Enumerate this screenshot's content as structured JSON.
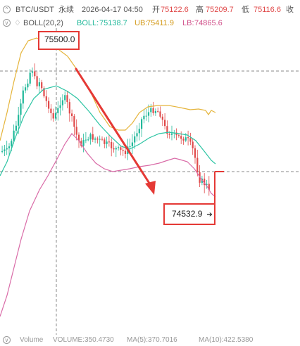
{
  "header": {
    "symbol": "BTC/USDT",
    "contract": "永续",
    "datetime": "2026-04-17 04:50",
    "open_label": "开",
    "open_value": "75122.6",
    "high_label": "高",
    "high_value": "75209.7",
    "low_label": "低",
    "low_value": "75116.6",
    "close_label": "收"
  },
  "indicator": {
    "name": "BOLL(20,2)",
    "boll_label": "BOLL:",
    "boll_value": "75138.7",
    "ub_label": "UB:",
    "ub_value": "75411.9",
    "lb_label": "LB:",
    "lb_value": "74865.6"
  },
  "annotations": {
    "high_price": "75500.0",
    "last_price": "74532.9"
  },
  "volume": {
    "label": "Volume",
    "volume_text": "VOLUME:350.4730",
    "ma5_text": "MA(5):370.7016",
    "ma10_text": "MA(10):422.5380"
  },
  "colors": {
    "up": "#21b89a",
    "down": "#e04a4a",
    "mid_band": "#2cc4a3",
    "upper_band": "#e5b43a",
    "lower_band": "#d96ba7",
    "arrow": "#e53935"
  }
}
